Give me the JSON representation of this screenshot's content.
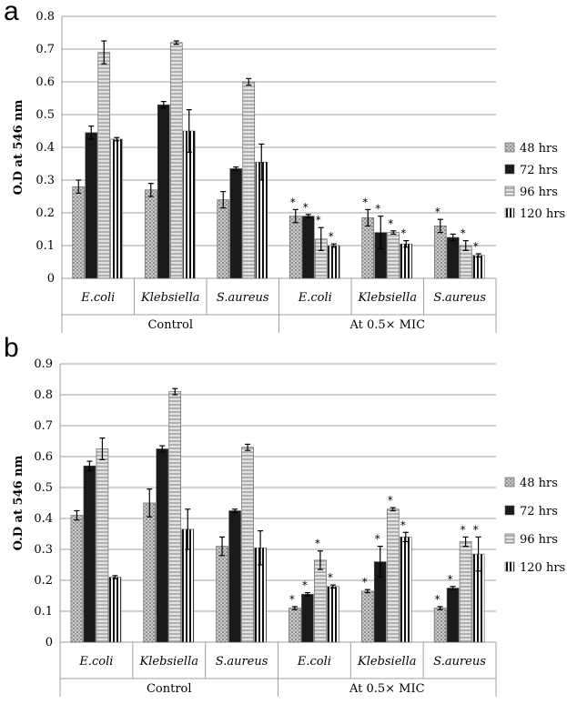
{
  "chart_data": [
    {
      "panel": "a",
      "type": "bar",
      "ylabel": "O.D at 546 nm",
      "ylim": [
        0,
        0.8
      ],
      "yticks": [
        "0",
        "0.1",
        "0.2",
        "0.3",
        "0.4",
        "0.5",
        "0.6",
        "0.7",
        "0.8"
      ],
      "groups": [
        {
          "label": "Control",
          "categories": [
            "E.coli",
            "Klebsiella",
            "S.aureus"
          ]
        },
        {
          "label": "At 0.5× MIC",
          "categories": [
            "E.coli",
            "Klebsiella",
            "S.aureus"
          ]
        }
      ],
      "legend_position": "right",
      "series": [
        {
          "name": "48 hrs",
          "pattern": "dots",
          "values": [
            0.28,
            0.27,
            0.24,
            0.19,
            0.185,
            0.16
          ],
          "errors": [
            0.02,
            0.02,
            0.025,
            0.02,
            0.025,
            0.02
          ],
          "stars": [
            false,
            false,
            false,
            true,
            true,
            true
          ]
        },
        {
          "name": "72 hrs",
          "pattern": "solid",
          "values": [
            0.445,
            0.53,
            0.335,
            0.19,
            0.14,
            0.125
          ],
          "errors": [
            0.02,
            0.01,
            0.005,
            0.005,
            0.05,
            0.01
          ],
          "stars": [
            false,
            false,
            false,
            true,
            true,
            false
          ]
        },
        {
          "name": "96 hrs",
          "pattern": "hstripes",
          "values": [
            0.69,
            0.72,
            0.6,
            0.12,
            0.14,
            0.1
          ],
          "errors": [
            0.035,
            0.005,
            0.01,
            0.035,
            0.005,
            0.015
          ],
          "stars": [
            false,
            false,
            false,
            true,
            true,
            true
          ]
        },
        {
          "name": "120 hrs",
          "pattern": "vstripes",
          "values": [
            0.425,
            0.45,
            0.355,
            0.1,
            0.105,
            0.07
          ],
          "errors": [
            0.005,
            0.065,
            0.055,
            0.005,
            0.01,
            0.005
          ],
          "stars": [
            false,
            false,
            false,
            true,
            true,
            true
          ]
        }
      ]
    },
    {
      "panel": "b",
      "type": "bar",
      "ylabel": "O.D at 546 nm",
      "ylim": [
        0,
        0.9
      ],
      "yticks": [
        "0",
        "0.1",
        "0.2",
        "0.3",
        "0.4",
        "0.5",
        "0.6",
        "0.7",
        "0.8",
        "0.9"
      ],
      "groups": [
        {
          "label": "Control",
          "categories": [
            "E.coli",
            "Klebsiella",
            "S.aureus"
          ]
        },
        {
          "label": "At 0.5× MIC",
          "categories": [
            "E.coli",
            "Klebsiella",
            "S.aureus"
          ]
        }
      ],
      "legend_position": "right",
      "series": [
        {
          "name": "48 hrs",
          "pattern": "dots",
          "values": [
            0.41,
            0.45,
            0.31,
            0.11,
            0.165,
            0.11
          ],
          "errors": [
            0.015,
            0.045,
            0.03,
            0.005,
            0.005,
            0.005
          ],
          "stars": [
            false,
            false,
            false,
            true,
            true,
            true
          ]
        },
        {
          "name": "72 hrs",
          "pattern": "solid",
          "values": [
            0.57,
            0.625,
            0.425,
            0.155,
            0.26,
            0.175
          ],
          "errors": [
            0.015,
            0.01,
            0.005,
            0.005,
            0.05,
            0.005
          ],
          "stars": [
            false,
            false,
            false,
            true,
            true,
            true
          ]
        },
        {
          "name": "96 hrs",
          "pattern": "hstripes",
          "values": [
            0.625,
            0.81,
            0.63,
            0.265,
            0.43,
            0.325
          ],
          "errors": [
            0.035,
            0.01,
            0.01,
            0.03,
            0.005,
            0.015
          ],
          "stars": [
            false,
            false,
            false,
            true,
            true,
            true
          ]
        },
        {
          "name": "120 hrs",
          "pattern": "vstripes",
          "values": [
            0.21,
            0.365,
            0.305,
            0.18,
            0.34,
            0.285
          ],
          "errors": [
            0.005,
            0.065,
            0.055,
            0.005,
            0.015,
            0.055
          ],
          "stars": [
            false,
            false,
            false,
            true,
            true,
            true
          ]
        }
      ]
    }
  ],
  "figure": {
    "panel_a_letter": "a",
    "panel_b_letter": "b",
    "significance_marker": "*"
  }
}
